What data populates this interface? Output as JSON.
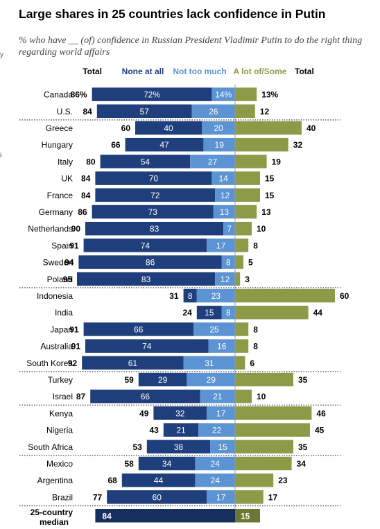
{
  "title": "Large shares in 25 countries lack confidence in Putin",
  "subtitle": "% who have __ (of) confidence in Russian President Vladimir Putin to do the right thing regarding world affairs",
  "edge_marks": [
    "y",
    "i"
  ],
  "colors": {
    "none_at_all": "#1f3e7c",
    "not_too_much": "#5b93d3",
    "some": "#8d9b49",
    "median_none": "#172f5e",
    "median_some": "#6b7734",
    "separator": "#555555",
    "center_line": "#999999"
  },
  "chart_data": {
    "type": "bar",
    "orientation": "horizontal-diverging",
    "headers": {
      "total_left": "Total",
      "none_at_all": "None at all",
      "not_too_much": "Not too much",
      "some": "A lot of/Some",
      "total_right": "Total"
    },
    "rows": [
      {
        "country": "Canada",
        "total": "86%",
        "none": 72,
        "none_label": "72%",
        "not_much": 14,
        "not_much_label": "14%",
        "some": 13,
        "some_label": "13%"
      },
      {
        "country": "U.S.",
        "total": "84",
        "none": 57,
        "none_label": "57",
        "not_much": 26,
        "not_much_label": "26",
        "some": 12,
        "some_label": "12"
      },
      {
        "country": "Greece",
        "total": "60",
        "none": 40,
        "none_label": "40",
        "not_much": 20,
        "not_much_label": "20",
        "some": 40,
        "some_label": "40"
      },
      {
        "country": "Hungary",
        "total": "66",
        "none": 47,
        "none_label": "47",
        "not_much": 19,
        "not_much_label": "19",
        "some": 32,
        "some_label": "32"
      },
      {
        "country": "Italy",
        "total": "80",
        "none": 54,
        "none_label": "54",
        "not_much": 27,
        "not_much_label": "27",
        "some": 19,
        "some_label": "19"
      },
      {
        "country": "UK",
        "total": "84",
        "none": 70,
        "none_label": "70",
        "not_much": 14,
        "not_much_label": "14",
        "some": 15,
        "some_label": "15"
      },
      {
        "country": "France",
        "total": "84",
        "none": 72,
        "none_label": "72",
        "not_much": 12,
        "not_much_label": "12",
        "some": 15,
        "some_label": "15"
      },
      {
        "country": "Germany",
        "total": "86",
        "none": 73,
        "none_label": "73",
        "not_much": 13,
        "not_much_label": "13",
        "some": 13,
        "some_label": "13"
      },
      {
        "country": "Netherlands",
        "total": "90",
        "none": 83,
        "none_label": "83",
        "not_much": 7,
        "not_much_label": "7",
        "some": 10,
        "some_label": "10"
      },
      {
        "country": "Spain",
        "total": "91",
        "none": 74,
        "none_label": "74",
        "not_much": 17,
        "not_much_label": "17",
        "some": 8,
        "some_label": "8"
      },
      {
        "country": "Sweden",
        "total": "94",
        "none": 86,
        "none_label": "86",
        "not_much": 8,
        "not_much_label": "8",
        "some": 5,
        "some_label": "5"
      },
      {
        "country": "Poland",
        "total": "95",
        "none": 83,
        "none_label": "83",
        "not_much": 12,
        "not_much_label": "12",
        "some": 3,
        "some_label": "3"
      },
      {
        "country": "Indonesia",
        "total": "31",
        "none": 8,
        "none_label": "8",
        "not_much": 23,
        "not_much_label": "23",
        "some": 60,
        "some_label": "60"
      },
      {
        "country": "India",
        "total": "24",
        "none": 15,
        "none_label": "15",
        "not_much": 8,
        "not_much_label": "8",
        "some": 44,
        "some_label": "44"
      },
      {
        "country": "Japan",
        "total": "91",
        "none": 66,
        "none_label": "66",
        "not_much": 25,
        "not_much_label": "25",
        "some": 8,
        "some_label": "8"
      },
      {
        "country": "Australia",
        "total": "91",
        "none": 74,
        "none_label": "74",
        "not_much": 16,
        "not_much_label": "16",
        "some": 8,
        "some_label": "8"
      },
      {
        "country": "South Korea",
        "total": "92",
        "none": 61,
        "none_label": "61",
        "not_much": 31,
        "not_much_label": "31",
        "some": 6,
        "some_label": "6"
      },
      {
        "country": "Turkey",
        "total": "59",
        "none": 29,
        "none_label": "29",
        "not_much": 29,
        "not_much_label": "29",
        "some": 35,
        "some_label": "35"
      },
      {
        "country": "Israel",
        "total": "87",
        "none": 66,
        "none_label": "66",
        "not_much": 21,
        "not_much_label": "21",
        "some": 10,
        "some_label": "10"
      },
      {
        "country": "Kenya",
        "total": "49",
        "none": 32,
        "none_label": "32",
        "not_much": 17,
        "not_much_label": "17",
        "some": 46,
        "some_label": "46"
      },
      {
        "country": "Nigeria",
        "total": "43",
        "none": 21,
        "none_label": "21",
        "not_much": 22,
        "not_much_label": "22",
        "some": 45,
        "some_label": "45"
      },
      {
        "country": "South Africa",
        "total": "53",
        "none": 38,
        "none_label": "38",
        "not_much": 15,
        "not_much_label": "15",
        "some": 35,
        "some_label": "35"
      },
      {
        "country": "Mexico",
        "total": "58",
        "none": 34,
        "none_label": "34",
        "not_much": 24,
        "not_much_label": "24",
        "some": 34,
        "some_label": "34"
      },
      {
        "country": "Argentina",
        "total": "68",
        "none": 44,
        "none_label": "44",
        "not_much": 24,
        "not_much_label": "24",
        "some": 23,
        "some_label": "23"
      },
      {
        "country": "Brazil",
        "total": "77",
        "none": 60,
        "none_label": "60",
        "not_much": 17,
        "not_much_label": "17",
        "some": 17,
        "some_label": "17"
      }
    ],
    "median": {
      "label_lines": [
        "25-country",
        "median"
      ],
      "none": 84,
      "none_label": "84",
      "some": 15,
      "some_label": "15"
    },
    "groups_end_after": [
      "U.S.",
      "Poland",
      "South Korea",
      "Israel",
      "South Africa",
      "Brazil"
    ],
    "xlim": [
      -100,
      100
    ]
  }
}
